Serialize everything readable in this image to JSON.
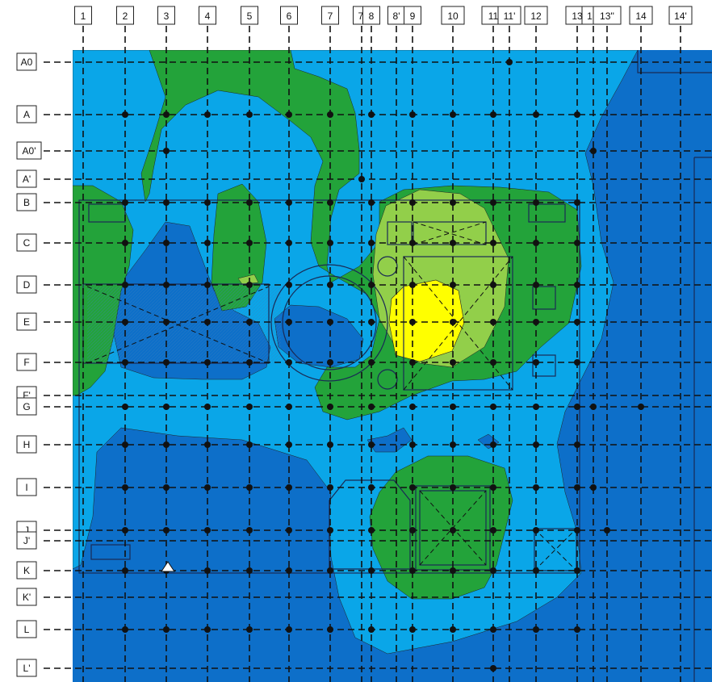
{
  "columns": [
    {
      "label": "1"
    },
    {
      "label": "2"
    },
    {
      "label": "3"
    },
    {
      "label": "4"
    },
    {
      "label": "5"
    },
    {
      "label": "6"
    },
    {
      "label": "7"
    },
    {
      "label": "7'"
    },
    {
      "label": "8"
    },
    {
      "label": "8'"
    },
    {
      "label": "9"
    },
    {
      "label": "10"
    },
    {
      "label": "11"
    },
    {
      "label": "11'"
    },
    {
      "label": "12"
    },
    {
      "label": "13"
    },
    {
      "label": "13'"
    },
    {
      "label": "13''"
    },
    {
      "label": "14"
    },
    {
      "label": "14'"
    }
  ],
  "rows": [
    {
      "label": "A0"
    },
    {
      "label": "A"
    },
    {
      "label": "A0'"
    },
    {
      "label": "A'"
    },
    {
      "label": "B"
    },
    {
      "label": "C"
    },
    {
      "label": "D"
    },
    {
      "label": "E"
    },
    {
      "label": "F"
    },
    {
      "label": "F'"
    },
    {
      "label": "G"
    },
    {
      "label": "H"
    },
    {
      "label": "I"
    },
    {
      "label": "J"
    },
    {
      "label": "J'"
    },
    {
      "label": "K"
    },
    {
      "label": "K'"
    },
    {
      "label": "L"
    },
    {
      "label": "L'"
    }
  ],
  "colors": {
    "zone_dark_blue": "#0d6fc9",
    "zone_mid_blue": "#0aa6e8",
    "zone_green": "#23a33a",
    "zone_light_green": "#92cf4a",
    "zone_yellow": "#ffff00",
    "grid_line": "#111111"
  }
}
